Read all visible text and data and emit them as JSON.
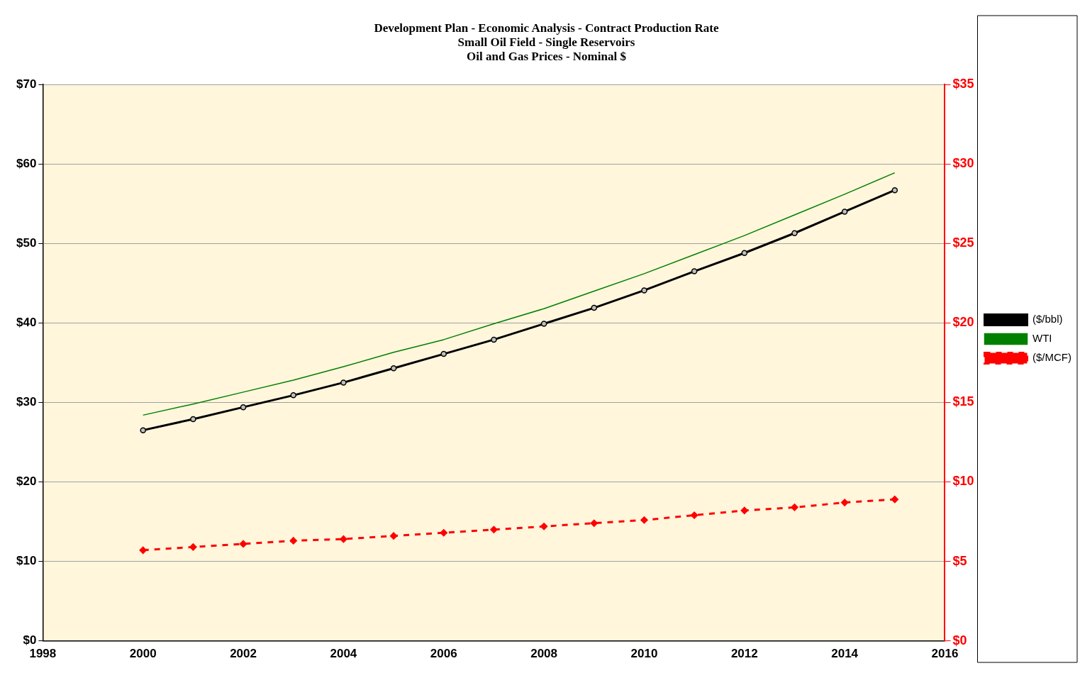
{
  "chart_data": {
    "type": "line",
    "title": "Development Plan - Economic Analysis - Contract Production Rate\nSmall Oil Field - Single Reservoirs\nOil and Gas Prices - Nominal $",
    "x": [
      2000,
      2001,
      2002,
      2003,
      2004,
      2005,
      2006,
      2007,
      2008,
      2009,
      2010,
      2011,
      2012,
      2013,
      2014,
      2015
    ],
    "series": [
      {
        "name": "($/bbl)",
        "color": "#000000",
        "marker": "circle",
        "line_style": "solid",
        "values": [
          26.5,
          27.9,
          29.4,
          30.9,
          32.5,
          34.3,
          36.1,
          37.9,
          39.9,
          41.9,
          44.1,
          46.5,
          48.8,
          51.3,
          54.0,
          56.7
        ]
      },
      {
        "name": "WTI",
        "color": "#008000",
        "marker": "none",
        "line_style": "solid",
        "values": [
          28.4,
          29.8,
          31.3,
          32.8,
          34.5,
          36.3,
          37.9,
          39.9,
          41.8,
          44.0,
          46.2,
          48.6,
          51.0,
          53.6,
          56.2,
          58.9
        ]
      },
      {
        "name": "($/MCF)",
        "color": "#ff0000",
        "marker": "diamond",
        "line_style": "dashed",
        "axis": "y2",
        "values": [
          5.7,
          5.9,
          6.1,
          6.3,
          6.4,
          6.6,
          6.8,
          7.0,
          7.2,
          7.4,
          7.6,
          7.9,
          8.2,
          8.4,
          8.7,
          8.9
        ]
      }
    ],
    "xlim": [
      1998,
      2016
    ],
    "xticks": [
      1998,
      2000,
      2002,
      2004,
      2006,
      2008,
      2010,
      2012,
      2014,
      2016
    ],
    "ylim": [
      0,
      70
    ],
    "yticks": [
      {
        "value": 0,
        "label": "$0"
      },
      {
        "value": 10,
        "label": "$10"
      },
      {
        "value": 20,
        "label": "$20"
      },
      {
        "value": 30,
        "label": "$30"
      },
      {
        "value": 40,
        "label": "$40"
      },
      {
        "value": 50,
        "label": "$50"
      },
      {
        "value": 60,
        "label": "$60"
      },
      {
        "value": 70,
        "label": "$70"
      }
    ],
    "y2lim": [
      0,
      35
    ],
    "y2ticks": [
      {
        "value": 0,
        "label": "$0"
      },
      {
        "value": 5,
        "label": "$5"
      },
      {
        "value": 10,
        "label": "$10"
      },
      {
        "value": 15,
        "label": "$15"
      },
      {
        "value": 20,
        "label": "$20"
      },
      {
        "value": 25,
        "label": "$25"
      },
      {
        "value": 30,
        "label": "$30"
      },
      {
        "value": 35,
        "label": "$35"
      }
    ],
    "grid": "y",
    "legend": "right"
  }
}
